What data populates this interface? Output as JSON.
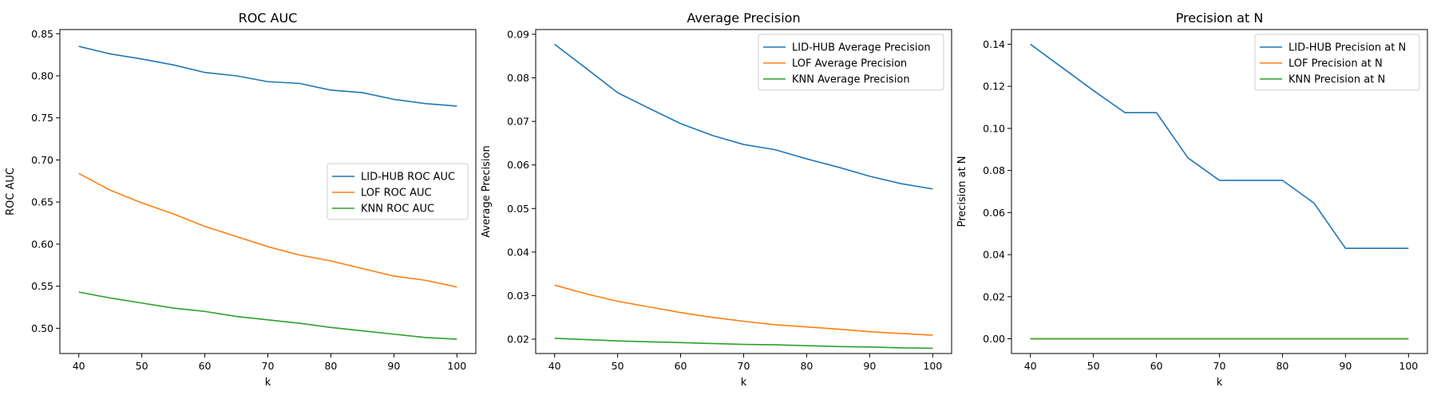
{
  "chart_data": [
    {
      "type": "line",
      "title": "ROC AUC",
      "xlabel": "k",
      "ylabel": "ROC AUC",
      "x": [
        40,
        45,
        50,
        55,
        60,
        65,
        70,
        75,
        80,
        85,
        90,
        95,
        100
      ],
      "xlim": [
        37,
        103
      ],
      "ylim": [
        0.47,
        0.855
      ],
      "xticks": [
        40,
        50,
        60,
        70,
        80,
        90,
        100
      ],
      "yticks": [
        0.5,
        0.55,
        0.6,
        0.65,
        0.7,
        0.75,
        0.8,
        0.85
      ],
      "ytick_decimals": 2,
      "grid": false,
      "legend_position": "center-right",
      "series": [
        {
          "name": "LID-HUB ROC AUC",
          "color": "#1f77b4",
          "values": [
            0.835,
            0.826,
            0.82,
            0.813,
            0.804,
            0.8,
            0.793,
            0.791,
            0.783,
            0.78,
            0.772,
            0.767,
            0.764
          ]
        },
        {
          "name": "LOF ROC AUC",
          "color": "#ff7f0e",
          "values": [
            0.684,
            0.664,
            0.649,
            0.636,
            0.621,
            0.609,
            0.597,
            0.587,
            0.58,
            0.571,
            0.562,
            0.557,
            0.549
          ]
        },
        {
          "name": "KNN ROC AUC",
          "color": "#2ca02c",
          "values": [
            0.543,
            0.536,
            0.53,
            0.524,
            0.52,
            0.514,
            0.51,
            0.506,
            0.501,
            0.497,
            0.493,
            0.489,
            0.487
          ]
        }
      ]
    },
    {
      "type": "line",
      "title": "Average Precision",
      "xlabel": "k",
      "ylabel": "Average Precision",
      "x": [
        40,
        45,
        50,
        55,
        60,
        65,
        70,
        75,
        80,
        85,
        90,
        95,
        100
      ],
      "xlim": [
        37,
        103
      ],
      "ylim": [
        0.0167,
        0.0911
      ],
      "xticks": [
        40,
        50,
        60,
        70,
        80,
        90,
        100
      ],
      "yticks": [
        0.02,
        0.03,
        0.04,
        0.05,
        0.06,
        0.07,
        0.08,
        0.09
      ],
      "ytick_decimals": 2,
      "grid": false,
      "legend_position": "upper-right",
      "series": [
        {
          "name": "LID-HUB Average Precision",
          "color": "#1f77b4",
          "values": [
            0.0877,
            0.0822,
            0.0766,
            0.073,
            0.0695,
            0.0668,
            0.0647,
            0.0635,
            0.0614,
            0.0595,
            0.0574,
            0.0557,
            0.0545
          ]
        },
        {
          "name": "LOF Average Precision",
          "color": "#ff7f0e",
          "values": [
            0.0324,
            0.0304,
            0.0287,
            0.0274,
            0.0261,
            0.025,
            0.0241,
            0.0233,
            0.0228,
            0.0223,
            0.0217,
            0.0213,
            0.0209
          ]
        },
        {
          "name": "KNN Average Precision",
          "color": "#2ca02c",
          "values": [
            0.0202,
            0.0199,
            0.0196,
            0.0194,
            0.0192,
            0.019,
            0.0188,
            0.0187,
            0.0185,
            0.0183,
            0.0182,
            0.018,
            0.0179
          ]
        }
      ]
    },
    {
      "type": "line",
      "title": "Precision at N",
      "xlabel": "k",
      "ylabel": "Precision at N",
      "x": [
        40,
        45,
        50,
        55,
        60,
        65,
        70,
        75,
        80,
        85,
        90,
        95,
        100
      ],
      "xlim": [
        37,
        103
      ],
      "ylim": [
        -0.007,
        0.147
      ],
      "xticks": [
        40,
        50,
        60,
        70,
        80,
        90,
        100
      ],
      "yticks": [
        0.0,
        0.02,
        0.04,
        0.06,
        0.08,
        0.1,
        0.12,
        0.14
      ],
      "ytick_decimals": 2,
      "grid": false,
      "legend_position": "upper-right",
      "series": [
        {
          "name": "LID-HUB Precision at N",
          "color": "#1f77b4",
          "values": [
            0.14,
            0.129,
            0.118,
            0.1075,
            0.1075,
            0.086,
            0.0753,
            0.0753,
            0.0753,
            0.0645,
            0.043,
            0.043,
            0.043
          ]
        },
        {
          "name": "LOF Precision at N",
          "color": "#ff7f0e",
          "values": [
            0,
            0,
            0,
            0,
            0,
            0,
            0,
            0,
            0,
            0,
            0,
            0,
            0
          ]
        },
        {
          "name": "KNN Precision at N",
          "color": "#2ca02c",
          "values": [
            0,
            0,
            0,
            0,
            0,
            0,
            0,
            0,
            0,
            0,
            0,
            0,
            0
          ]
        }
      ]
    }
  ]
}
